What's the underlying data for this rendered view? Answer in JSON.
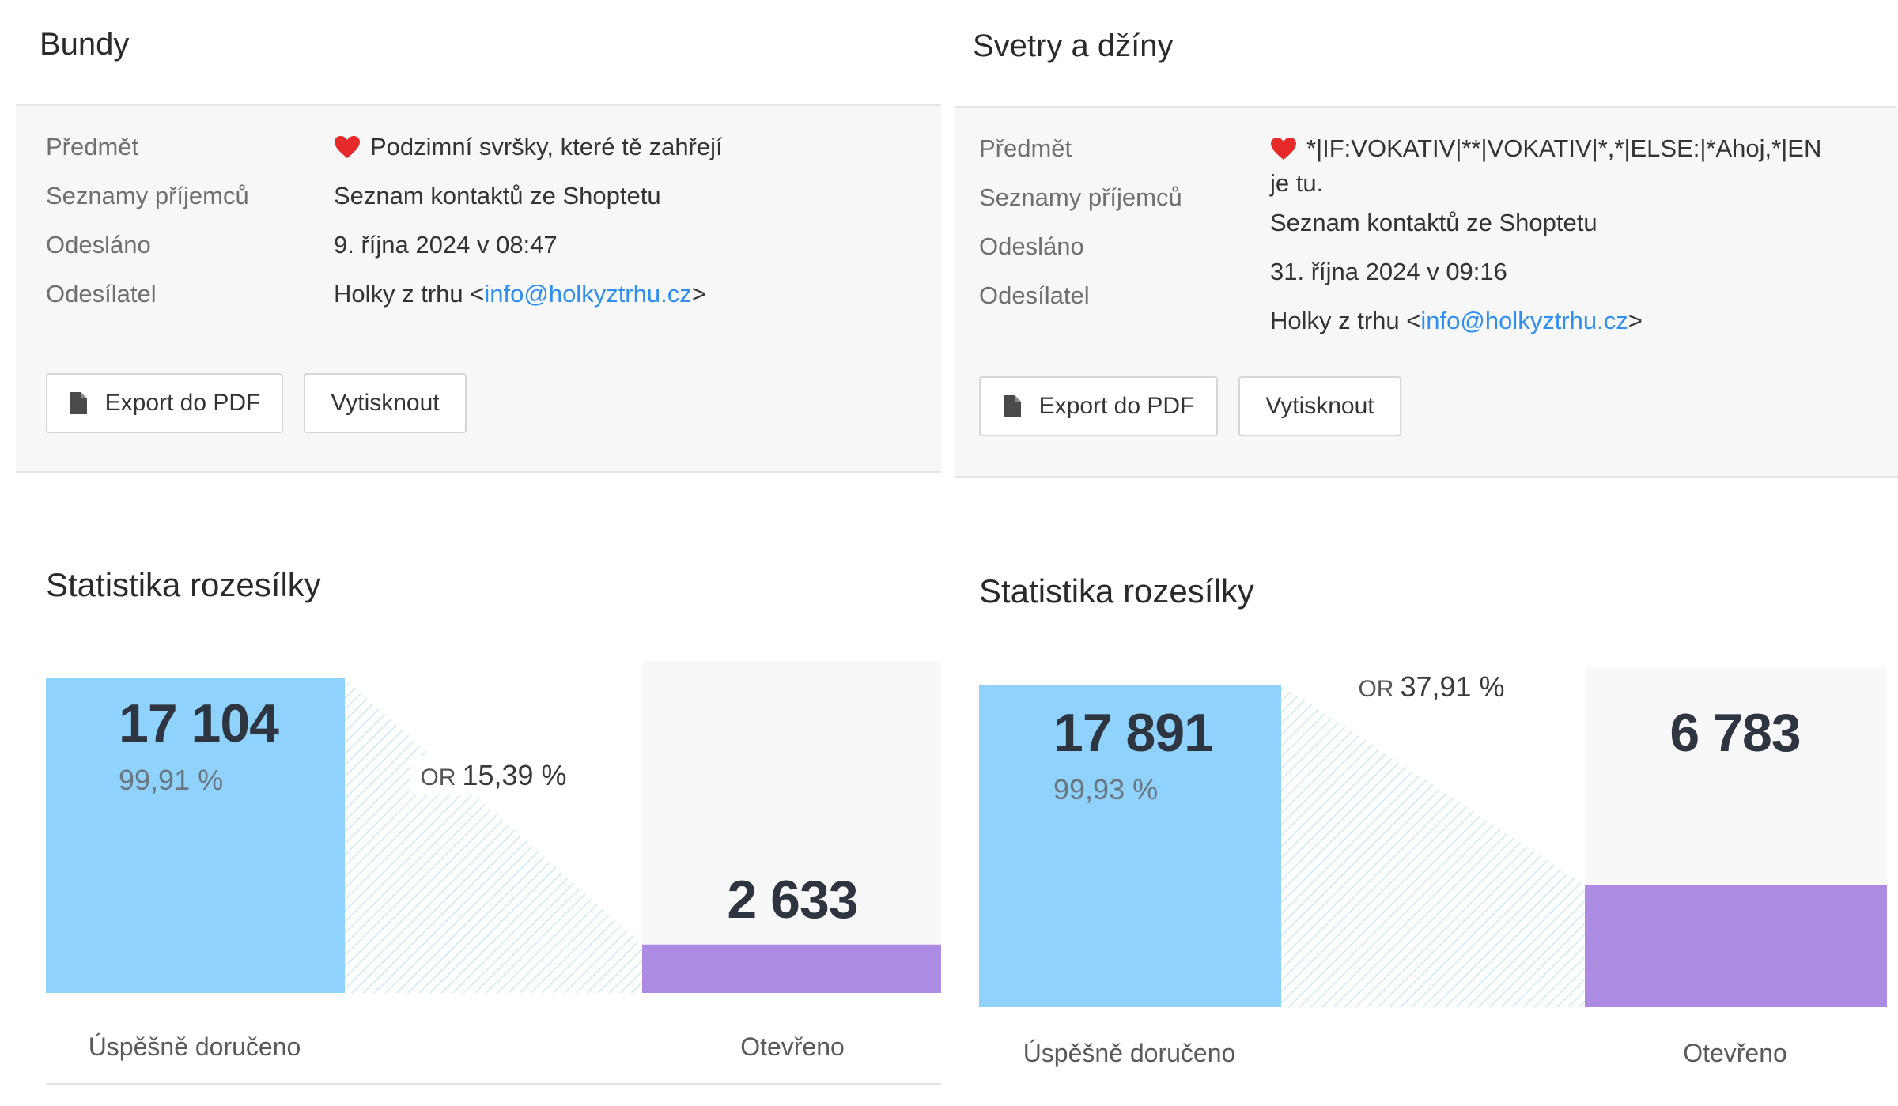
{
  "campaigns": [
    {
      "title": "Bundy",
      "labels": {
        "subject": "Předmět",
        "recipients": "Seznamy příjemců",
        "sent": "Odesláno",
        "sender": "Odesílatel"
      },
      "subject": "Podzimní svršky, které tě zahřejí",
      "subject_continued": "",
      "recipients": "Seznam kontaktů ze Shoptetu",
      "sent": "9. října 2024 v 08:47",
      "sender_name": "Holky z trhu <",
      "sender_email": "info@holkyztrhu.cz",
      "sender_suffix": ">",
      "buttons": {
        "export": "Export do PDF",
        "print": "Vytisknout"
      },
      "stats_title": "Statistika rozesílky",
      "delivered_value": "17 104",
      "delivered_percent": "99,91 %",
      "open_rate_prefix": "OR",
      "open_rate": "15,39 %",
      "opened_value": "2 633",
      "delivered_label": "Úspěšně doručeno",
      "opened_label": "Otevřeno"
    },
    {
      "title": "Svetry a džíny",
      "labels": {
        "subject": "Předmět",
        "recipients": "Seznamy příjemců",
        "sent": "Odesláno",
        "sender": "Odesílatel"
      },
      "subject": "*|IF:VOKATIV|**|VOKATIV|*,*|ELSE:|*Ahoj,*|EN",
      "subject_continued": "je tu.",
      "recipients": "Seznam kontaktů ze Shoptetu",
      "sent": "31. října 2024 v 09:16",
      "sender_name": "Holky z trhu <",
      "sender_email": "info@holkyztrhu.cz",
      "sender_suffix": ">",
      "buttons": {
        "export": "Export do PDF",
        "print": "Vytisknout"
      },
      "stats_title": "Statistika rozesílky",
      "delivered_value": "17 891",
      "delivered_percent": "99,93 %",
      "open_rate_prefix": "OR",
      "open_rate": "37,91 %",
      "opened_value": "6 783",
      "delivered_label": "Úspěšně doručeno",
      "opened_label": "Otevřeno"
    }
  ],
  "chart_data": [
    {
      "type": "bar",
      "categories": [
        "Úspěšně doručeno",
        "Otevřeno"
      ],
      "values": [
        17104,
        2633
      ],
      "percent_delivered": 99.91,
      "open_rate_percent": 15.39
    },
    {
      "type": "bar",
      "categories": [
        "Úspěšně doručeno",
        "Otevřeno"
      ],
      "values": [
        17891,
        6783
      ],
      "percent_delivered": 99.93,
      "open_rate_percent": 37.91
    }
  ],
  "colors": {
    "delivered": "#8fd3fc",
    "opened": "#ad8be3",
    "link": "#2f8ff0",
    "heart": "#e62a2a"
  },
  "icons": {
    "heart": "heart-icon",
    "document": "document-icon"
  }
}
